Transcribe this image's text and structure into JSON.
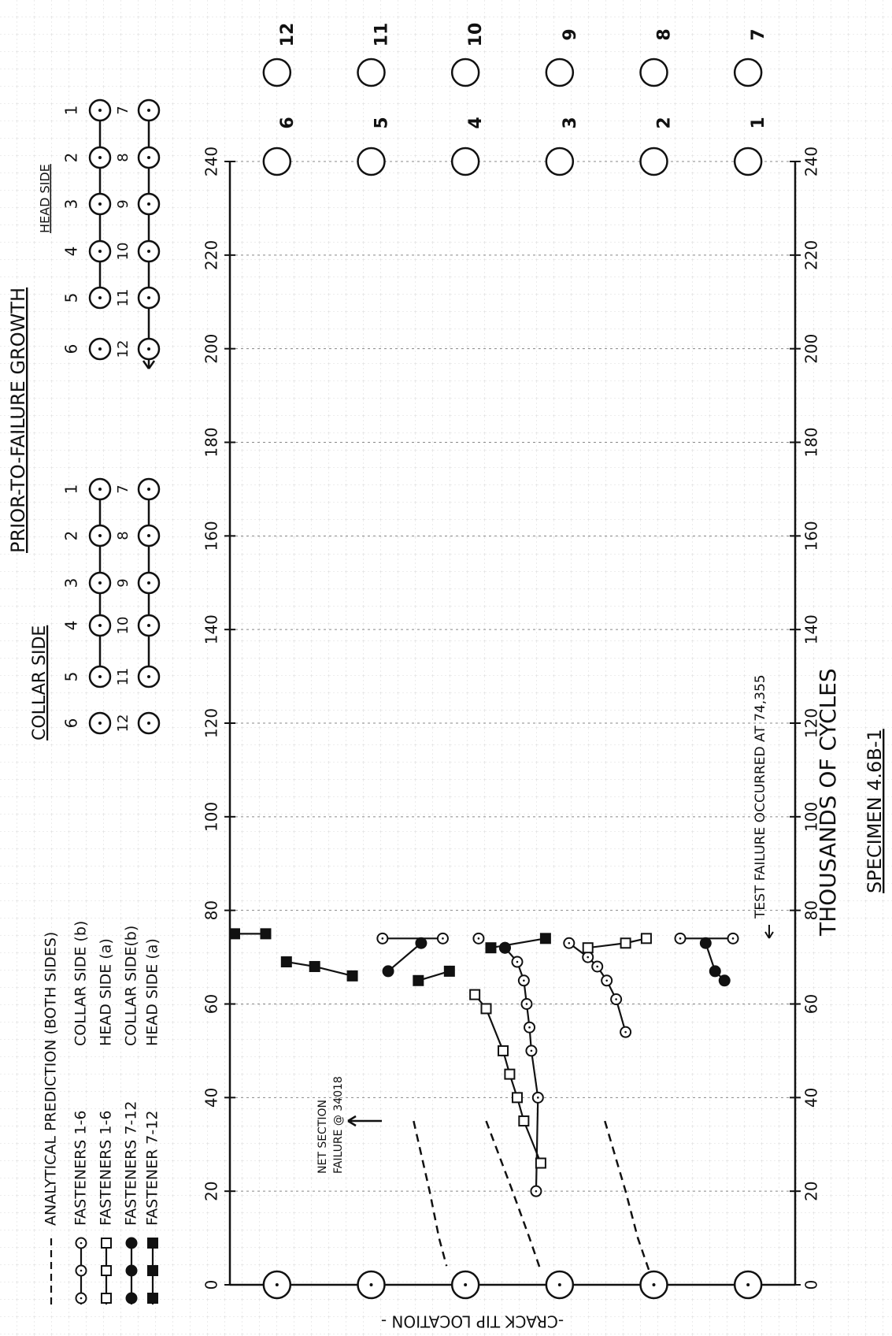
{
  "chart_data": {
    "type": "line",
    "title": "PRIOR-TO-FAILURE GROWTH",
    "x_label": "THOUSANDS OF CYCLES",
    "y_label": "-CRACK TIP LOCATION -",
    "subtitle": "SPECIMEN 4.6B-1",
    "xlim": [
      0,
      240
    ],
    "xticks": [
      0,
      20,
      40,
      60,
      80,
      100,
      120,
      140,
      160,
      180,
      200,
      220,
      240
    ],
    "ylim": [
      0,
      6
    ],
    "grid": true,
    "fastener_labels": {
      "inner": [
        "6",
        "5",
        "4",
        "3",
        "2",
        "1"
      ],
      "outer": [
        "12",
        "11",
        "10",
        "9",
        "8",
        "7"
      ]
    },
    "schematics": [
      {
        "title": "COLLAR SIDE",
        "row_1_6": [
          "6",
          "5",
          "4",
          "3",
          "2",
          "1"
        ],
        "row_7_12": [
          "12",
          "11",
          "10",
          "9",
          "8",
          "7"
        ]
      },
      {
        "title": "HEAD SIDE",
        "row_1_6": [
          "6",
          "5",
          "4",
          "3",
          "2",
          "1"
        ],
        "row_7_12": [
          "12",
          "11",
          "10",
          "9",
          "8",
          "7"
        ]
      }
    ],
    "net_section_note": [
      "NET SECTION",
      "FAILURE @ 34018"
    ],
    "test_failure_note": "TEST FAILURE OCCURRED AT 74,355",
    "series": [
      {
        "name": "ANALYTICAL PREDICTION (BOTH SIDES)",
        "marker": "none",
        "dashed": true,
        "color": "#111",
        "x": [
          35,
          20,
          10,
          4,
          null,
          35,
          20,
          10,
          3,
          null,
          35,
          20,
          10,
          3
        ],
        "values": [
          1.95,
          2.12,
          2.22,
          2.3,
          null,
          2.72,
          3.0,
          3.18,
          3.3,
          null,
          3.98,
          4.2,
          4.33,
          4.45
        ]
      },
      {
        "name": "FASTENERS 1-6",
        "side": "COLLAR SIDE (b)",
        "marker": "circle-open",
        "color": "#111",
        "x": [
          20,
          40,
          50,
          55,
          60,
          65,
          69,
          72,
          null,
          54,
          61,
          65,
          68,
          70,
          73,
          null,
          74,
          74,
          null,
          74,
          null,
          74,
          74
        ],
        "values": [
          3.25,
          3.27,
          3.2,
          3.18,
          3.15,
          3.12,
          3.05,
          2.92,
          null,
          4.2,
          4.1,
          4.0,
          3.9,
          3.8,
          3.6,
          null,
          1.62,
          2.26,
          null,
          2.64,
          null,
          4.78,
          5.34
        ]
      },
      {
        "name": "FASTENERS 1-6",
        "side": "HEAD SIDE (a)",
        "marker": "square-open",
        "color": "#111",
        "x": [
          26,
          35,
          40,
          45,
          50,
          59,
          62,
          null,
          72,
          73,
          74
        ],
        "values": [
          3.3,
          3.12,
          3.05,
          2.97,
          2.9,
          2.72,
          2.6,
          null,
          3.8,
          4.2,
          4.42
        ]
      },
      {
        "name": "FASTENERS 7-12",
        "side": "COLLAR SIDE(b)",
        "marker": "circle-filled",
        "color": "#111",
        "x": [
          67,
          73,
          null,
          72,
          null,
          73,
          67,
          65
        ],
        "values": [
          1.68,
          2.03,
          null,
          2.92,
          null,
          5.05,
          5.15,
          5.25
        ]
      },
      {
        "name": "FASTENER 7-12",
        "side": "HEAD SIDE (a)",
        "marker": "square-filled",
        "color": "#111",
        "x": [
          75,
          75,
          null,
          69,
          68,
          66,
          null,
          65,
          67,
          null,
          72,
          74
        ],
        "values": [
          0.05,
          0.38,
          null,
          0.6,
          0.9,
          1.3,
          null,
          2.0,
          2.33,
          null,
          2.77,
          3.35
        ]
      }
    ]
  }
}
